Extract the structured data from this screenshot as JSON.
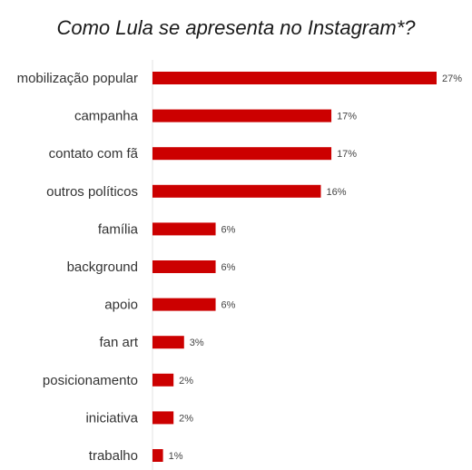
{
  "chart_data": {
    "type": "bar",
    "orientation": "horizontal",
    "title": "Como Lula se apresenta no Instagram*?",
    "xlabel": "",
    "ylabel": "",
    "categories": [
      "mobilização popular",
      "campanha",
      "contato com fã",
      "outros políticos",
      "família",
      "background",
      "apoio",
      "fan art",
      "posicionamento",
      "iniciativa",
      "trabalho"
    ],
    "values": [
      27,
      17,
      17,
      16,
      6,
      6,
      6,
      3,
      2,
      2,
      1
    ],
    "value_labels": [
      "27%",
      "17%",
      "17%",
      "16%",
      "6%",
      "6%",
      "6%",
      "3%",
      "2%",
      "2%",
      "1%"
    ],
    "unit": "%",
    "xlim": [
      0,
      27
    ],
    "grid": false,
    "legend": "none",
    "bar_color": "#cc0000",
    "axis_line_color": "#e3e3e3"
  }
}
